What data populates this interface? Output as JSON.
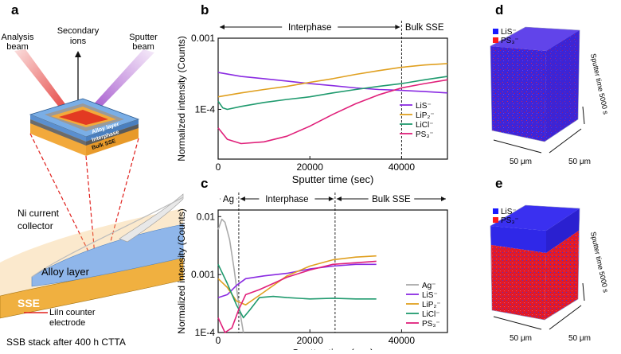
{
  "panels": {
    "a": "a",
    "b": "b",
    "c": "c",
    "d": "d",
    "e": "e"
  },
  "schematic": {
    "analysis_beam": [
      "Analysis",
      "beam"
    ],
    "secondary_ions": [
      "Secondary",
      "ions"
    ],
    "sputter_beam": [
      "Sputter",
      "beam"
    ],
    "alloy_layer_small": "Alloy layer",
    "interphase_small": "Interphase",
    "bulk_sse_small": "Bulk SSE",
    "ni_collector": [
      "Ni current",
      "collector"
    ],
    "alloy_layer": "Alloy layer",
    "sse": "SSE",
    "liin": [
      "LiIn counter",
      "electrode"
    ],
    "caption": "SSB stack after 400 h CTTA",
    "colors": {
      "beam": "#e0201c",
      "sputter": "#a040c8",
      "alloy": "#6a9fd8",
      "interphase": "#6b6b6b",
      "bulk": "#f2a93b"
    }
  },
  "cubes": [
    {
      "legend": [
        "LiS⁻",
        "PS₃⁻"
      ],
      "legend_colors": [
        "#1a1aff",
        "#ff1a1a"
      ],
      "sputter_label": "Sputter time 5000 s",
      "dim1": "50 μm",
      "dim2": "50 μm"
    },
    {
      "legend": [
        "LiS⁻",
        "PS₃⁻"
      ],
      "legend_colors": [
        "#1a1aff",
        "#ff1a1a"
      ],
      "sputter_label": "Sputter time 5000 s",
      "dim1": "50 μm",
      "dim2": "50 μm"
    }
  ],
  "chart_data": [
    {
      "type": "line",
      "panel": "b",
      "xlabel": "Sputter time (sec)",
      "ylabel": "Normalized intensity (Counts)",
      "xlim": [
        0,
        50000
      ],
      "xticks": [
        0,
        20000,
        40000
      ],
      "ylim": [
        2e-05,
        0.001
      ],
      "yscale": "log",
      "yticks": [
        {
          "value": 0.001,
          "label": "0.001"
        },
        {
          "value": 0.0001,
          "label": "1E-4"
        }
      ],
      "regions": [
        {
          "label": "Interphase",
          "from": 0,
          "to": 40000
        },
        {
          "label": "Bulk SSE",
          "from": 40000,
          "to": 50000
        }
      ],
      "dividers": [
        40000
      ],
      "series": [
        {
          "name": "LiS⁻",
          "color": "#8a2be2",
          "x": [
            0,
            5000,
            10000,
            15000,
            20000,
            25000,
            30000,
            35000,
            40000,
            45000,
            50000
          ],
          "y": [
            0.00033,
            0.00029,
            0.00027,
            0.00025,
            0.00023,
            0.000215,
            0.0002,
            0.00019,
            0.000185,
            0.000178,
            0.00017
          ]
        },
        {
          "name": "LiP₂⁻",
          "color": "#e0a020",
          "x": [
            0,
            5000,
            10000,
            15000,
            20000,
            25000,
            30000,
            35000,
            40000,
            45000,
            50000
          ],
          "y": [
            0.00015,
            0.00017,
            0.00019,
            0.00021,
            0.00024,
            0.00027,
            0.00031,
            0.00035,
            0.00039,
            0.00042,
            0.00044
          ]
        },
        {
          "name": "LiCl⁻",
          "color": "#1f9a6e",
          "x": [
            0,
            1000,
            2000,
            5000,
            10000,
            15000,
            20000,
            25000,
            30000,
            35000,
            40000,
            45000,
            50000
          ],
          "y": [
            0.00013,
            0.000105,
            0.0001,
            0.00011,
            0.000125,
            0.000138,
            0.00015,
            0.00017,
            0.00019,
            0.00021,
            0.00023,
            0.00026,
            0.00029
          ]
        },
        {
          "name": "PS₃⁻",
          "color": "#e0207a",
          "x": [
            0,
            2000,
            5000,
            10000,
            15000,
            20000,
            25000,
            30000,
            35000,
            40000,
            45000,
            50000
          ],
          "y": [
            5.5e-05,
            3.8e-05,
            3.3e-05,
            3.5e-05,
            4.2e-05,
            5.8e-05,
            8.5e-05,
            0.00012,
            0.00016,
            0.0002,
            0.00023,
            0.00026
          ]
        }
      ]
    },
    {
      "type": "line",
      "panel": "c",
      "xlabel": "Sputter time (sec)",
      "ylabel": "Normalized intensity (Counts)",
      "xlim": [
        0,
        50000
      ],
      "xticks": [
        0,
        20000,
        40000
      ],
      "ylim": [
        0.0001,
        0.013
      ],
      "yscale": "log",
      "yticks": [
        {
          "value": 0.01,
          "label": "0.01"
        },
        {
          "value": 0.001,
          "label": "0.001"
        },
        {
          "value": 0.0001,
          "label": "1E-4"
        }
      ],
      "regions": [
        {
          "label": "Ag",
          "from": 0,
          "to": 4500
        },
        {
          "label": "Interphase",
          "from": 4500,
          "to": 25500
        },
        {
          "label": "Bulk SSE",
          "from": 25500,
          "to": 50000
        }
      ],
      "dividers": [
        4500,
        25500
      ],
      "series": [
        {
          "name": "Ag⁻",
          "color": "#aaaaaa",
          "x": [
            0,
            800,
            1500,
            2500,
            3500,
            4500,
            5500
          ],
          "y": [
            0.006,
            0.009,
            0.008,
            0.004,
            0.0012,
            0.0003,
            0.0001
          ]
        },
        {
          "name": "LiS⁻",
          "color": "#8a2be2",
          "x": [
            0,
            2000,
            4000,
            6000,
            10000,
            15000,
            20000,
            25000,
            30000,
            34500
          ],
          "y": [
            0.0004,
            0.00045,
            0.00065,
            0.00085,
            0.00095,
            0.00105,
            0.00125,
            0.0014,
            0.0015,
            0.0015
          ]
        },
        {
          "name": "LiP₂⁻",
          "color": "#e0a020",
          "x": [
            0,
            2000,
            4000,
            6000,
            10000,
            15000,
            20000,
            25000,
            30000,
            34500
          ],
          "y": [
            0.00085,
            0.0006,
            0.00035,
            0.0003,
            0.0005,
            0.00095,
            0.0014,
            0.0018,
            0.002,
            0.0021
          ]
        },
        {
          "name": "LiCl⁻",
          "color": "#1f9a6e",
          "x": [
            0,
            2000,
            4000,
            5500,
            7000,
            9000,
            12000,
            15000,
            20000,
            25000,
            30000,
            34500
          ],
          "y": [
            0.0015,
            0.0007,
            0.0003,
            0.00018,
            0.00025,
            0.0004,
            0.00042,
            0.0004,
            0.00038,
            0.00039,
            0.00038,
            0.00038
          ]
        },
        {
          "name": "PS₃⁻",
          "color": "#e0207a",
          "x": [
            0,
            1500,
            3000,
            4500,
            6000,
            9000,
            12000,
            15000,
            20000,
            25000,
            30000,
            34500
          ],
          "y": [
            0.00018,
            0.0001,
            0.00012,
            0.00025,
            0.00045,
            0.00055,
            0.0007,
            0.0009,
            0.0012,
            0.0015,
            0.0016,
            0.0017
          ]
        }
      ]
    }
  ]
}
